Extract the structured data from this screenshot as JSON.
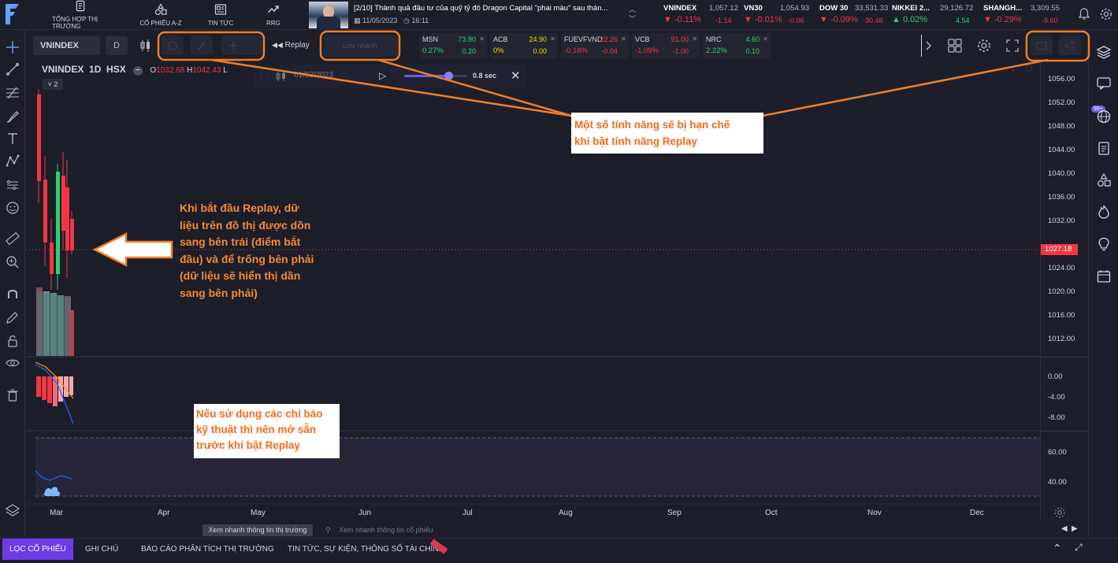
{
  "nav": {
    "items": [
      {
        "label": "TỔNG HỢP THỊ TRƯỜNG",
        "icon": "document-icon"
      },
      {
        "label": "CỔ PHIẾU A-Z",
        "icon": "shapes-icon"
      },
      {
        "label": "TIN TỨC",
        "icon": "news-icon"
      },
      {
        "label": "RRG",
        "icon": "trend-icon"
      }
    ]
  },
  "news": {
    "title": "[2/10]  Thành quả đầu tư của quỹ tỷ đô Dragon Capital \"phai màu\" sau thán...",
    "date": "11/05/2023",
    "time": "16:11"
  },
  "tickers": [
    {
      "name": "VNINDEX",
      "price": "1,057.12",
      "pct": "▼ -0.11%",
      "chg": "-1.14",
      "dir": "down"
    },
    {
      "name": "VN30",
      "price": "1,054.93",
      "pct": "▼ -0.01%",
      "chg": "-0.06",
      "dir": "down"
    },
    {
      "name": "DOW 30",
      "price": "33,531.33",
      "pct": "▼ -0.09%",
      "chg": "-30.48",
      "dir": "down"
    },
    {
      "name": "NIKKEI 2...",
      "price": "29,126.72",
      "pct": "▲ 0.02%",
      "chg": "4.54",
      "dir": "up"
    },
    {
      "name": "SHANGH...",
      "price": "3,309.55",
      "pct": "▼ -0.29%",
      "chg": "-9.60",
      "dir": "down"
    }
  ],
  "toolbar": {
    "symbol": "VNINDEX",
    "interval": "D",
    "replay_label": "Replay",
    "save_label": "Lưu nhanh"
  },
  "watchlist": [
    {
      "name": "MSN",
      "price": "73.80",
      "pct": "0.27%",
      "chg": "0.20",
      "color": "green"
    },
    {
      "name": "ACB",
      "price": "24.90",
      "pct": "0%",
      "chg": "0.00",
      "color": "yellow"
    },
    {
      "name": "FUEVFVND",
      "price": "22.26",
      "pct": "-0.18%",
      "chg": "-0.04",
      "color": "red"
    },
    {
      "name": "VCB",
      "price": "91.00",
      "pct": "-1.09%",
      "chg": "-1.00",
      "color": "red"
    },
    {
      "name": "NRC",
      "price": "4.60",
      "pct": "2.22%",
      "chg": "0.10",
      "color": "green"
    }
  ],
  "legend": {
    "symbol": "VNINDEX",
    "interval": "1D",
    "exchange": "HSX",
    "open_label": "O",
    "open": "1032.68",
    "high_label": "H",
    "high": "1042.43",
    "low_label": "L",
    "collapse": "˅ 2"
  },
  "replay": {
    "date": "01/03/2023",
    "speed": "0.8 sec",
    "speed_fraction": 0.7
  },
  "price_axis": {
    "ticks": [
      "1056.00",
      "1052.00",
      "1048.00",
      "1044.00",
      "1040.00",
      "1036.00",
      "1032.00",
      "1024.00",
      "1020.00",
      "1016.00",
      "1012.00"
    ],
    "current": "1027.18",
    "macd_ticks": [
      "0.00",
      "-4.00",
      "-8.00"
    ],
    "rsi_ticks": [
      "60.00",
      "40.00"
    ]
  },
  "time_axis": [
    "Mar",
    "Apr",
    "May",
    "Jun",
    "Jul",
    "Aug",
    "Sep",
    "Oct",
    "Nov",
    "Dec"
  ],
  "infobar": {
    "quick_label": "Xem nhanh thông tin thị trường",
    "search_placeholder": "Xem nhanh thông tin cổ phiếu"
  },
  "sidebar": {
    "badge": "99+"
  },
  "bottom_tabs": [
    "LỌC CỔ PHIẾU",
    "GHI CHÚ",
    "BÁO CÁO PHÂN TÍCH THỊ TRƯỜNG",
    "TIN TỨC, SỰ KIỆN, THÔNG SỐ TÀI CHÍNH"
  ],
  "annotations": {
    "restricted": "Một số tính năng sẽ bị hạn chế\nkhi bật tính năng Replay",
    "replay_start": "Khi bắt đầu Replay, dữ\nliệu trên đồ thị được dồn\nsang bên trái (điểm bắt\nđầu) và để trống bên phải\n(dữ liệu sẽ hiển thị dần\nsang bên phải)",
    "indicators": "Nếu sử dụng các chỉ báo\nkỹ thuật thì nên mở sẵn\ntrước khi bật Replay"
  },
  "colors": {
    "background": "#1b1d29",
    "accent": "#6c3be7",
    "up": "#2dd16c",
    "down": "#f23645",
    "annotation": "#f26b1d"
  }
}
